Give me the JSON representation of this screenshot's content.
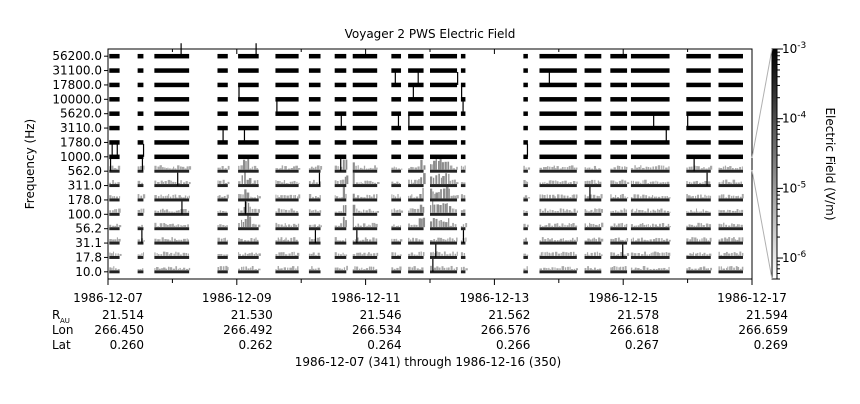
{
  "chart_data": {
    "type": "heatmap",
    "title": "Voyager 2 PWS Electric Field",
    "ylabel": "Frequency (Hz)",
    "colorbar_label": "Electric Field (V/m)",
    "subtitle": "1986-12-07 (341) through 1986-12-16 (350)",
    "y_channels": [
      "10.0",
      "17.8",
      "31.1",
      "56.2",
      "100.0",
      "178.0",
      "311.0",
      "562.0",
      "1000.0",
      "1780.0",
      "3110.0",
      "5620.0",
      "10000.0",
      "17800.0",
      "31100.0",
      "56200.0"
    ],
    "x_ticks": [
      "1986-12-07",
      "1986-12-09",
      "1986-12-11",
      "1986-12-13",
      "1986-12-15",
      "1986-12-17"
    ],
    "x_range_days": [
      0,
      10
    ],
    "colorbar": {
      "scale": "log",
      "range": [
        5e-07,
        0.001
      ],
      "ticks": [
        {
          "label": "10",
          "exp": "-6",
          "value": 1e-06
        },
        {
          "label": "10",
          "exp": "-5",
          "value": 1e-05
        },
        {
          "label": "10",
          "exp": "-4",
          "value": 0.0001
        },
        {
          "label": "10",
          "exp": "-3",
          "value": 0.001
        }
      ]
    },
    "ephemeris": {
      "rows": [
        {
          "label": "R",
          "sub": "AU",
          "values": [
            "21.514",
            "21.530",
            "21.546",
            "21.562",
            "21.578",
            "21.594"
          ]
        },
        {
          "label": "Lon",
          "sub": "",
          "values": [
            "266.450",
            "266.492",
            "266.534",
            "266.576",
            "266.618",
            "266.659"
          ]
        },
        {
          "label": "Lat",
          "sub": "",
          "values": [
            "0.260",
            "0.262",
            "0.264",
            "0.266",
            "0.267",
            "0.269"
          ]
        }
      ]
    },
    "data_segments_days": [
      [
        0.02,
        0.18
      ],
      [
        0.46,
        0.55
      ],
      [
        0.72,
        1.26
      ],
      [
        1.7,
        1.86
      ],
      [
        2.02,
        2.34
      ],
      [
        2.6,
        2.96
      ],
      [
        3.12,
        3.3
      ],
      [
        3.52,
        3.7
      ],
      [
        3.8,
        4.18
      ],
      [
        4.4,
        4.55
      ],
      [
        4.66,
        4.9
      ],
      [
        5.0,
        5.42
      ],
      [
        5.48,
        5.55
      ],
      [
        6.45,
        6.52
      ],
      [
        6.7,
        7.28
      ],
      [
        7.4,
        7.66
      ],
      [
        7.8,
        8.06
      ],
      [
        8.12,
        8.72
      ],
      [
        8.98,
        9.36
      ],
      [
        9.48,
        9.86
      ]
    ],
    "enhanced_intervals_days": [
      [
        2.06,
        2.2
      ],
      [
        3.64,
        3.82
      ],
      [
        4.82,
        5.3
      ]
    ]
  }
}
